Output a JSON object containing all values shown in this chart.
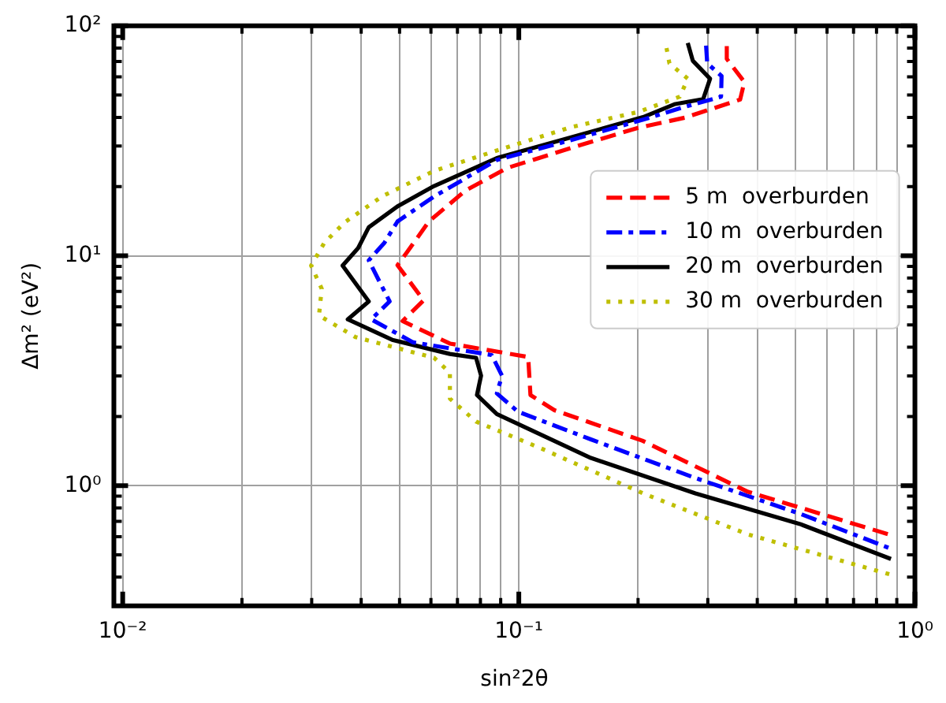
{
  "chart_data": {
    "type": "line",
    "xlabel": "sin²2θ",
    "ylabel": "Δm² (eV²)",
    "log": "xy",
    "xlim": [
      0.0095,
      1
    ],
    "ylim": [
      0.3,
      100
    ],
    "xticks": [
      {
        "value": 0.01,
        "label": "10⁻²"
      },
      {
        "value": 0.02,
        "label": null
      },
      {
        "value": 0.03,
        "label": null
      },
      {
        "value": 0.04,
        "label": null
      },
      {
        "value": 0.05,
        "label": null
      },
      {
        "value": 0.06,
        "label": null
      },
      {
        "value": 0.07,
        "label": null
      },
      {
        "value": 0.08,
        "label": null
      },
      {
        "value": 0.09,
        "label": null
      },
      {
        "value": 0.1,
        "label": "10⁻¹"
      },
      {
        "value": 0.2,
        "label": null
      },
      {
        "value": 0.3,
        "label": null
      },
      {
        "value": 0.4,
        "label": null
      },
      {
        "value": 0.5,
        "label": null
      },
      {
        "value": 0.6,
        "label": null
      },
      {
        "value": 0.7,
        "label": null
      },
      {
        "value": 0.8,
        "label": null
      },
      {
        "value": 0.9,
        "label": null
      },
      {
        "value": 1,
        "label": "10⁰"
      }
    ],
    "yticks": [
      {
        "value": 0.3,
        "label": null
      },
      {
        "value": 0.4,
        "label": null
      },
      {
        "value": 0.5,
        "label": null
      },
      {
        "value": 0.6,
        "label": null
      },
      {
        "value": 0.7,
        "label": null
      },
      {
        "value": 0.8,
        "label": null
      },
      {
        "value": 0.9,
        "label": null
      },
      {
        "value": 1,
        "label": "10⁰"
      },
      {
        "value": 2,
        "label": null
      },
      {
        "value": 3,
        "label": null
      },
      {
        "value": 4,
        "label": null
      },
      {
        "value": 5,
        "label": null
      },
      {
        "value": 6,
        "label": null
      },
      {
        "value": 7,
        "label": null
      },
      {
        "value": 8,
        "label": null
      },
      {
        "value": 9,
        "label": null
      },
      {
        "value": 10,
        "label": "10¹"
      },
      {
        "value": 20,
        "label": null
      },
      {
        "value": 30,
        "label": null
      },
      {
        "value": 40,
        "label": null
      },
      {
        "value": 50,
        "label": null
      },
      {
        "value": 60,
        "label": null
      },
      {
        "value": 70,
        "label": null
      },
      {
        "value": 80,
        "label": null
      },
      {
        "value": 90,
        "label": null
      },
      {
        "value": 100,
        "label": "10²"
      }
    ],
    "grid": true,
    "legend": "right",
    "marker": "none",
    "series": [
      {
        "name": "5 m  overburden",
        "color": "#ff0000",
        "line_style": "dashed",
        "x": [
          0.335,
          0.335,
          0.371,
          0.362,
          0.263,
          0.2,
          0.135,
          0.0935,
          0.0733,
          0.0593,
          0.0523,
          0.0494,
          0.0575,
          0.0509,
          0.067,
          0.1056,
          0.107,
          0.123,
          0.205,
          0.379,
          0.87
        ],
        "values": [
          81.6,
          71.8,
          57,
          47.8,
          39.9,
          36,
          29.4,
          24.1,
          19.2,
          14.1,
          10.4,
          9.1,
          6.4,
          5.2,
          4.15,
          3.63,
          2.48,
          2.13,
          1.57,
          0.94,
          0.61
        ]
      },
      {
        "name": "10 m  overburden",
        "color": "#0000ff",
        "line_style": "dashdot",
        "x": [
          0.297,
          0.299,
          0.325,
          0.324,
          0.263,
          0.206,
          0.135,
          0.088,
          0.0611,
          0.0494,
          0.0458,
          0.0418,
          0.0444,
          0.0472,
          0.0424,
          0.0541,
          0.0854,
          0.0907,
          0.088,
          0.0994,
          0.152,
          0.279,
          0.513,
          0.87
        ],
        "values": [
          82,
          68.7,
          60.5,
          49.2,
          44.5,
          39.1,
          31.8,
          26.1,
          18.1,
          14.1,
          11.4,
          9.55,
          7.77,
          6.33,
          5.29,
          4.2,
          3.7,
          3.01,
          2.52,
          2.1,
          1.59,
          1.08,
          0.755,
          0.532
        ]
      },
      {
        "name": "20 m  overburden",
        "color": "#000000",
        "line_style": "solid",
        "x": [
          0.267,
          0.275,
          0.304,
          0.292,
          0.247,
          0.206,
          0.135,
          0.088,
          0.0611,
          0.0494,
          0.0418,
          0.0393,
          0.0359,
          0.0418,
          0.037,
          0.0479,
          0.067,
          0.078,
          0.0803,
          0.0784,
          0.088,
          0.152,
          0.279,
          0.513,
          0.87
        ],
        "values": [
          84.3,
          70.5,
          58.9,
          48,
          45.6,
          40.1,
          32.7,
          26.6,
          20.1,
          16.4,
          13.3,
          10.8,
          9.06,
          6.33,
          5.29,
          4.31,
          3.74,
          3.6,
          3.01,
          2.48,
          2.05,
          1.32,
          0.926,
          0.681,
          0.48
        ]
      },
      {
        "name": "30 m  overburden",
        "color": "#bfbf00",
        "line_style": "dotted",
        "x": [
          0.236,
          0.24,
          0.267,
          0.255,
          0.2,
          0.135,
          0.088,
          0.0611,
          0.0451,
          0.0364,
          0.0323,
          0.0299,
          0.0318,
          0.0313,
          0.0387,
          0.0611,
          0.067,
          0.067,
          0.078,
          0.112,
          0.206,
          0.379,
          0.87
        ],
        "values": [
          80.1,
          68.7,
          58.9,
          49.2,
          42.2,
          36.2,
          28.7,
          23.4,
          18.1,
          14,
          11.4,
          9.06,
          7.19,
          5.5,
          4.43,
          3.6,
          3.1,
          2.39,
          1.9,
          1.47,
          0.926,
          0.614,
          0.41
        ]
      }
    ]
  }
}
